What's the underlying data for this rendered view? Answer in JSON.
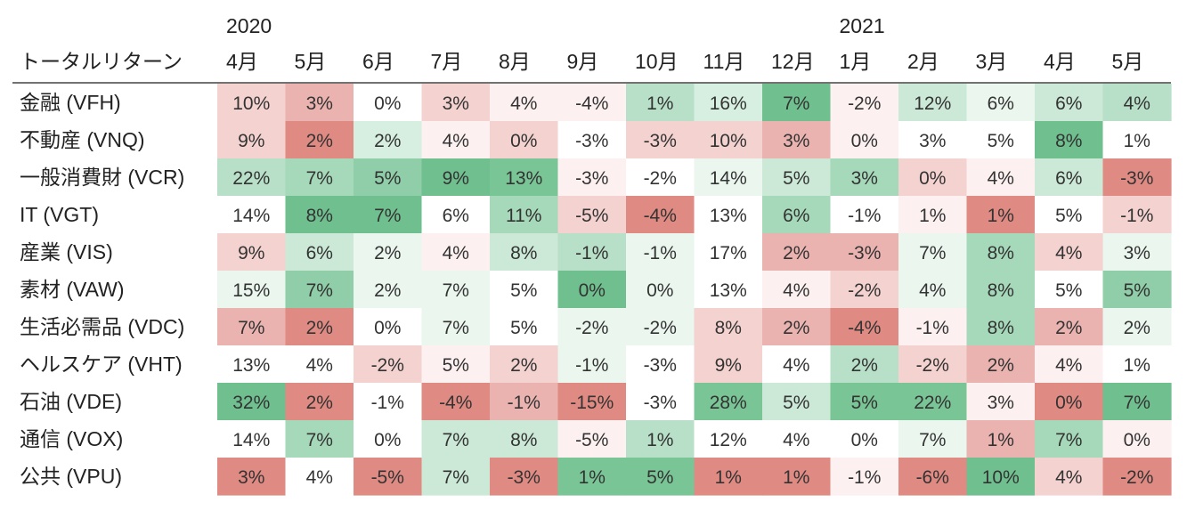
{
  "chart_data": {
    "type": "heatmap",
    "title": "トータルリターン",
    "year_labels": [
      {
        "label": "2020",
        "start_col": 0
      },
      {
        "label": "2021",
        "start_col": 9
      }
    ],
    "columns": [
      "4月",
      "5月",
      "6月",
      "7月",
      "8月",
      "9月",
      "10月",
      "11月",
      "12月",
      "1月",
      "2月",
      "3月",
      "4月",
      "5月"
    ],
    "rows": [
      {
        "label": "金融 (VFH)",
        "values": [
          "10%",
          "3%",
          "0%",
          "3%",
          "4%",
          "-4%",
          "1%",
          "16%",
          "7%",
          "-2%",
          "12%",
          "6%",
          "6%",
          "4%"
        ],
        "colors": [
          "#f3d2d0",
          "#eab3b0",
          "#ffffff",
          "#f3d2d0",
          "#fcf1f0",
          "#fcf1f0",
          "#b8e0c8",
          "#d6efe0",
          "#6fbf8f",
          "#fcf1f0",
          "#cbe9d6",
          "#eaf6ee",
          "#cbe9d6",
          "#b8e0c8"
        ]
      },
      {
        "label": "不動産 (VNQ)",
        "values": [
          "9%",
          "2%",
          "2%",
          "4%",
          "0%",
          "-3%",
          "-3%",
          "10%",
          "3%",
          "0%",
          "3%",
          "5%",
          "8%",
          "1%"
        ],
        "colors": [
          "#f3d2d0",
          "#df8a82",
          "#d6efe0",
          "#fcf1f0",
          "#f3d2d0",
          "#ffffff",
          "#f3d2d0",
          "#f3d2d0",
          "#eab3b0",
          "#fcf1f0",
          "#ffffff",
          "#ffffff",
          "#6fbf8f",
          "#ffffff"
        ]
      },
      {
        "label": "一般消費財 (VCR)",
        "values": [
          "22%",
          "7%",
          "5%",
          "9%",
          "13%",
          "-3%",
          "-2%",
          "14%",
          "5%",
          "3%",
          "0%",
          "4%",
          "6%",
          "-3%"
        ],
        "colors": [
          "#b8e0c8",
          "#a6d8ba",
          "#8fcea8",
          "#6fbf8f",
          "#7ac596",
          "#fcf1f0",
          "#ffffff",
          "#eaf6ee",
          "#cbe9d6",
          "#a6d8ba",
          "#f3d2d0",
          "#fcf1f0",
          "#cbe9d6",
          "#df8a82"
        ]
      },
      {
        "label": "IT (VGT)",
        "values": [
          "14%",
          "8%",
          "7%",
          "6%",
          "11%",
          "-5%",
          "-4%",
          "13%",
          "6%",
          "-1%",
          "1%",
          "1%",
          "5%",
          "-1%"
        ],
        "colors": [
          "#ffffff",
          "#6fbf8f",
          "#6fbf8f",
          "#ffffff",
          "#a6d8ba",
          "#f3d2d0",
          "#df8a82",
          "#ffffff",
          "#a6d8ba",
          "#ffffff",
          "#fcf1f0",
          "#df8a82",
          "#ffffff",
          "#f3d2d0"
        ]
      },
      {
        "label": "産業 (VIS)",
        "values": [
          "9%",
          "6%",
          "2%",
          "4%",
          "8%",
          "-1%",
          "-1%",
          "17%",
          "2%",
          "-3%",
          "7%",
          "8%",
          "4%",
          "3%"
        ],
        "colors": [
          "#f3d2d0",
          "#cbe9d6",
          "#eaf6ee",
          "#fcf1f0",
          "#cbe9d6",
          "#b8e0c8",
          "#eaf6ee",
          "#ffffff",
          "#eab3b0",
          "#eab3b0",
          "#eaf6ee",
          "#a6d8ba",
          "#f3d2d0",
          "#eaf6ee"
        ]
      },
      {
        "label": "素材 (VAW)",
        "values": [
          "15%",
          "7%",
          "2%",
          "7%",
          "5%",
          "0%",
          "0%",
          "13%",
          "4%",
          "-2%",
          "4%",
          "8%",
          "5%",
          "5%"
        ],
        "colors": [
          "#eaf6ee",
          "#8fcea8",
          "#eaf6ee",
          "#eaf6ee",
          "#ffffff",
          "#6fbf8f",
          "#eaf6ee",
          "#ffffff",
          "#fcf1f0",
          "#f3d2d0",
          "#eaf6ee",
          "#a6d8ba",
          "#ffffff",
          "#8fcea8"
        ]
      },
      {
        "label": "生活必需品 (VDC)",
        "values": [
          "7%",
          "2%",
          "0%",
          "7%",
          "5%",
          "-2%",
          "-2%",
          "8%",
          "2%",
          "-4%",
          "-1%",
          "8%",
          "2%",
          "2%"
        ],
        "colors": [
          "#eab3b0",
          "#df8a82",
          "#ffffff",
          "#eaf6ee",
          "#ffffff",
          "#eaf6ee",
          "#eaf6ee",
          "#f3d2d0",
          "#eab3b0",
          "#df8a82",
          "#fcf1f0",
          "#a6d8ba",
          "#eab3b0",
          "#eaf6ee"
        ]
      },
      {
        "label": "ヘルスケア (VHT)",
        "values": [
          "13%",
          "4%",
          "-2%",
          "5%",
          "2%",
          "-1%",
          "-3%",
          "9%",
          "4%",
          "2%",
          "-2%",
          "2%",
          "4%",
          "1%"
        ],
        "colors": [
          "#ffffff",
          "#ffffff",
          "#f3d2d0",
          "#fcf1f0",
          "#f3d2d0",
          "#eaf6ee",
          "#ffffff",
          "#f3d2d0",
          "#ffffff",
          "#b8e0c8",
          "#f3d2d0",
          "#eab3b0",
          "#fcf1f0",
          "#ffffff"
        ]
      },
      {
        "label": "石油 (VDE)",
        "values": [
          "32%",
          "2%",
          "-1%",
          "-4%",
          "-1%",
          "-15%",
          "-3%",
          "28%",
          "5%",
          "5%",
          "22%",
          "3%",
          "0%",
          "7%"
        ],
        "colors": [
          "#6fbf8f",
          "#df8a82",
          "#ffffff",
          "#df8a82",
          "#eab3b0",
          "#df8a82",
          "#ffffff",
          "#7ac596",
          "#cbe9d6",
          "#7ac596",
          "#7ac596",
          "#fcf1f0",
          "#df8a82",
          "#6fbf8f"
        ]
      },
      {
        "label": "通信 (VOX)",
        "values": [
          "14%",
          "7%",
          "0%",
          "7%",
          "8%",
          "-5%",
          "1%",
          "12%",
          "4%",
          "0%",
          "7%",
          "1%",
          "7%",
          "0%"
        ],
        "colors": [
          "#ffffff",
          "#a6d8ba",
          "#ffffff",
          "#cbe9d6",
          "#cbe9d6",
          "#fcf1f0",
          "#b8e0c8",
          "#ffffff",
          "#ffffff",
          "#ffffff",
          "#eaf6ee",
          "#eab3b0",
          "#a6d8ba",
          "#fcf1f0"
        ]
      },
      {
        "label": "公共 (VPU)",
        "values": [
          "3%",
          "4%",
          "-5%",
          "7%",
          "-3%",
          "1%",
          "5%",
          "1%",
          "1%",
          "-1%",
          "-6%",
          "10%",
          "4%",
          "-2%"
        ],
        "colors": [
          "#df8a82",
          "#ffffff",
          "#df8a82",
          "#cbe9d6",
          "#df8a82",
          "#7ac596",
          "#7ac596",
          "#df8a82",
          "#df8a82",
          "#fcf1f0",
          "#df8a82",
          "#6fbf8f",
          "#f3d2d0",
          "#df8a82"
        ]
      }
    ]
  }
}
